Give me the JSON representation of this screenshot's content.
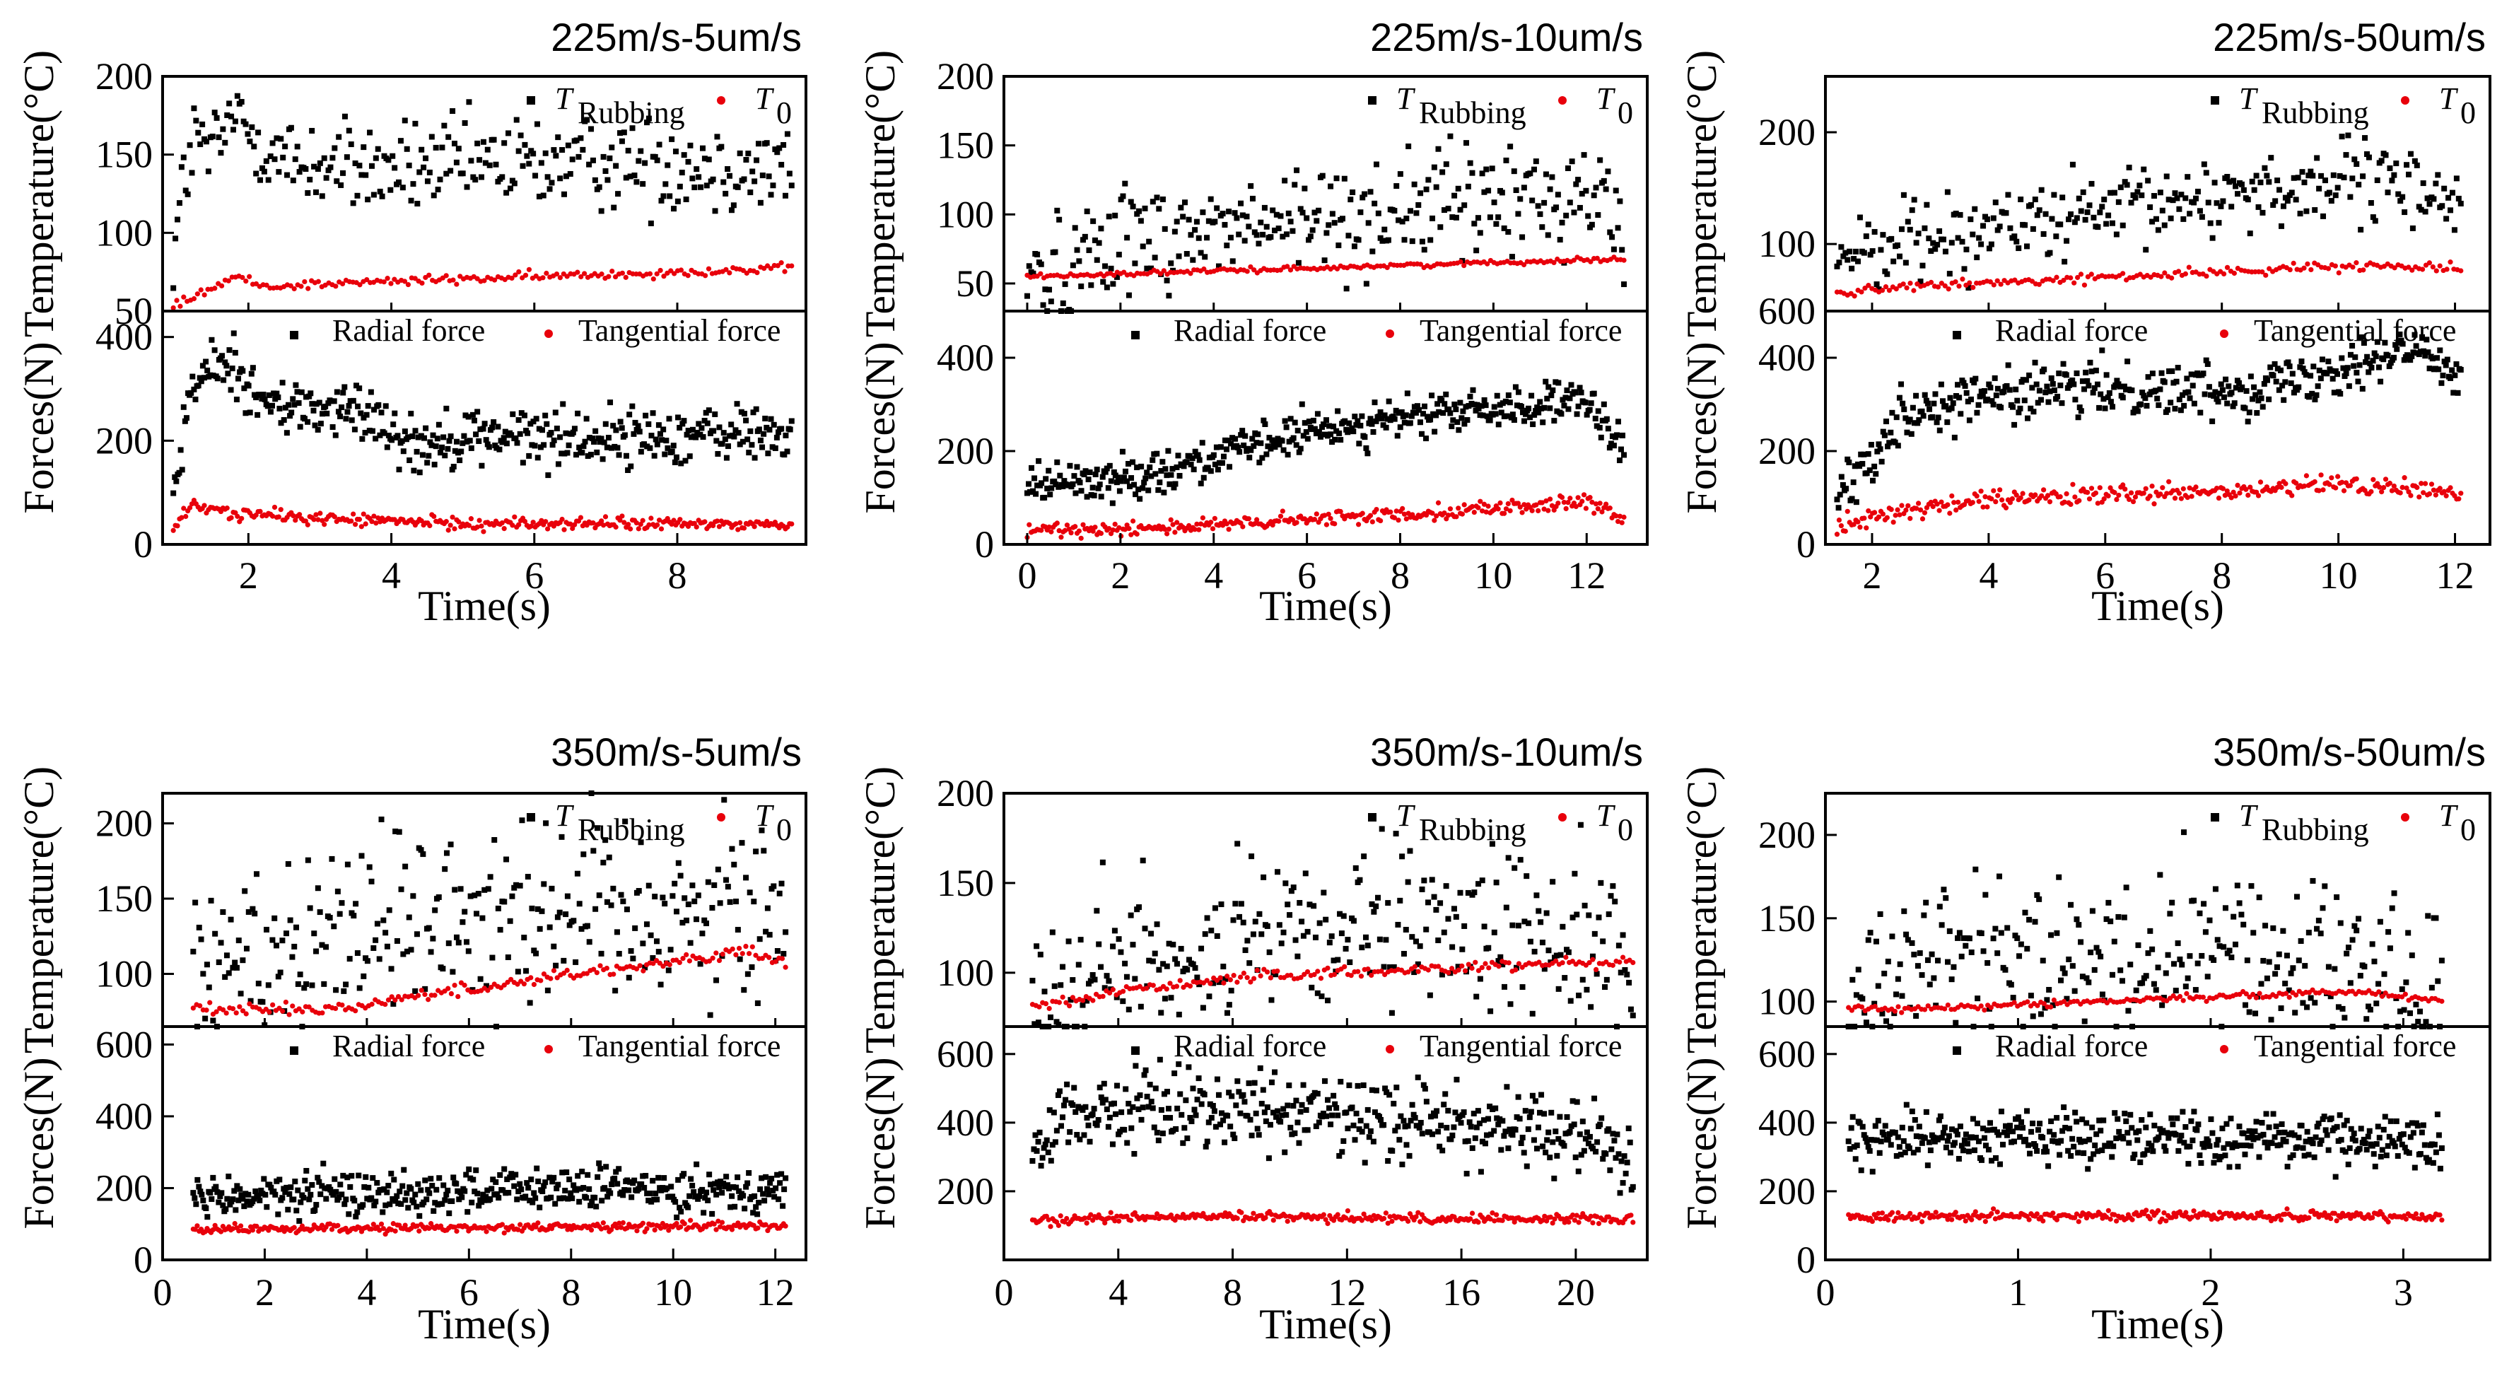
{
  "legend": {
    "t_rubbing": "T",
    "t_rubbing_sub": "Rubbing",
    "t0": "T",
    "t0_sub": "0",
    "radial": "Radial force",
    "tangential": "Tangential force"
  },
  "labels": {
    "temperature": "Temperature(°C)",
    "forces": "Forces(N)",
    "time": "Time(s)"
  },
  "colors": {
    "black_series": "#000000",
    "red_series": "#e8000b"
  },
  "chart_data": [
    {
      "type": "scatter",
      "title": "225m/s-5um/s",
      "xlim": [
        0.8,
        9.8
      ],
      "xticks": [
        2,
        4,
        6,
        8
      ],
      "temp": {
        "ylim": [
          50,
          200
        ],
        "yticks": [
          50,
          100,
          150,
          200
        ],
        "T_rubbing": [
          [
            0.95,
            85
          ],
          [
            1.1,
            135
          ],
          [
            1.25,
            160
          ],
          [
            1.5,
            150
          ],
          [
            1.8,
            175
          ],
          [
            2.5,
            145
          ],
          [
            4,
            140
          ],
          [
            6,
            145
          ],
          [
            8,
            145
          ],
          [
            9.6,
            140
          ]
        ],
        "T0": [
          [
            0.95,
            53
          ],
          [
            1.5,
            65
          ],
          [
            1.85,
            72
          ],
          [
            2.2,
            66
          ],
          [
            4,
            69
          ],
          [
            6,
            72
          ],
          [
            8,
            75
          ],
          [
            9.6,
            77
          ]
        ],
        "t_noise": 15,
        "t0_noise": 1.5
      },
      "force": {
        "ylim": [
          0,
          450
        ],
        "yticks": [
          0,
          200,
          400
        ],
        "radial": [
          [
            0.95,
            100
          ],
          [
            1.2,
            300
          ],
          [
            1.5,
            340
          ],
          [
            1.8,
            350
          ],
          [
            2.2,
            270
          ],
          [
            3,
            260
          ],
          [
            3.8,
            250
          ],
          [
            4.3,
            190
          ],
          [
            5,
            210
          ],
          [
            7,
            205
          ],
          [
            9,
            215
          ],
          [
            9.6,
            210
          ]
        ],
        "tangential": [
          [
            0.95,
            30
          ],
          [
            1.2,
            75
          ],
          [
            1.8,
            60
          ],
          [
            3,
            50
          ],
          [
            5,
            40
          ],
          [
            7,
            40
          ],
          [
            9.6,
            38
          ]
        ],
        "r_noise": 28,
        "t_noise": 6
      }
    },
    {
      "type": "scatter",
      "title": "225m/s-10um/s",
      "xlim": [
        -0.5,
        13.3
      ],
      "xticks": [
        0,
        2,
        4,
        6,
        8,
        10,
        12
      ],
      "temp": {
        "ylim": [
          30,
          200
        ],
        "yticks": [
          50,
          100,
          150,
          200
        ],
        "T_rubbing": [
          [
            0,
            56
          ],
          [
            0.9,
            57
          ],
          [
            1.5,
            85
          ],
          [
            3,
            85
          ],
          [
            6,
            95
          ],
          [
            8,
            105
          ],
          [
            10,
            110
          ],
          [
            12.5,
            115
          ],
          [
            12.8,
            68
          ]
        ],
        "T0": [
          [
            0,
            55
          ],
          [
            6,
            61
          ],
          [
            12.8,
            68
          ]
        ],
        "t_noise": 20,
        "t0_noise": 0.8
      },
      "force": {
        "ylim": [
          0,
          500
        ],
        "yticks": [
          0,
          200,
          400
        ],
        "radial": [
          [
            0,
            130
          ],
          [
            2,
            140
          ],
          [
            4,
            185
          ],
          [
            6,
            240
          ],
          [
            8,
            270
          ],
          [
            10,
            290
          ],
          [
            12,
            305
          ],
          [
            12.8,
            190
          ]
        ],
        "tangential": [
          [
            0,
            30
          ],
          [
            4,
            40
          ],
          [
            8,
            65
          ],
          [
            12,
            90
          ],
          [
            12.8,
            50
          ]
        ],
        "r_noise": 22,
        "t_noise": 8
      }
    },
    {
      "type": "scatter",
      "title": "225m/s-50um/s",
      "xlim": [
        1.2,
        12.6
      ],
      "xticks": [
        2,
        4,
        6,
        8,
        10,
        12
      ],
      "temp": {
        "ylim": [
          40,
          250
        ],
        "yticks": [
          100,
          200
        ],
        "T_rubbing": [
          [
            1.4,
            90
          ],
          [
            2,
            100
          ],
          [
            4,
            115
          ],
          [
            6,
            125
          ],
          [
            8,
            145
          ],
          [
            10,
            155
          ],
          [
            11.5,
            150
          ],
          [
            12.1,
            135
          ]
        ],
        "T0": [
          [
            1.4,
            55
          ],
          [
            2,
            60
          ],
          [
            4,
            65
          ],
          [
            6,
            70
          ],
          [
            8,
            75
          ],
          [
            10,
            80
          ],
          [
            12.1,
            80
          ]
        ],
        "t_noise": 18,
        "t0_noise": 2
      },
      "force": {
        "ylim": [
          0,
          500
        ],
        "yticks": [
          0,
          200,
          400
        ],
        "radial": [
          [
            1.4,
            100
          ],
          [
            1.9,
            180
          ],
          [
            2.5,
            280
          ],
          [
            4,
            320
          ],
          [
            6,
            335
          ],
          [
            8,
            330
          ],
          [
            9,
            345
          ],
          [
            10.5,
            400
          ],
          [
            11.5,
            410
          ],
          [
            12.1,
            370
          ]
        ],
        "tangential": [
          [
            1.4,
            40
          ],
          [
            2,
            60
          ],
          [
            4,
            95
          ],
          [
            6,
            105
          ],
          [
            8,
            110
          ],
          [
            10,
            130
          ],
          [
            12.1,
            110
          ]
        ],
        "r_noise": 28,
        "t_noise": 10
      },
      "extra_tick": "600"
    },
    {
      "type": "scatter",
      "title": "350m/s-5um/s",
      "xlim": [
        0,
        12.6
      ],
      "xticks": [
        0,
        2,
        4,
        6,
        8,
        10,
        12
      ],
      "temp": {
        "ylim": [
          65,
          220
        ],
        "yticks": [
          100,
          150,
          200
        ],
        "T_rubbing": [
          [
            0.6,
            85
          ],
          [
            1.5,
            115
          ],
          [
            3,
            130
          ],
          [
            5,
            140
          ],
          [
            7,
            145
          ],
          [
            9,
            145
          ],
          [
            11,
            145
          ],
          [
            12.2,
            140
          ]
        ],
        "T0": [
          [
            0.6,
            77
          ],
          [
            3.5,
            77
          ],
          [
            4.5,
            83
          ],
          [
            6,
            90
          ],
          [
            8,
            100
          ],
          [
            10,
            108
          ],
          [
            11.5,
            115
          ],
          [
            12.2,
            106
          ]
        ],
        "t_noise": 32,
        "t0_noise": 2
      },
      "force": {
        "ylim": [
          0,
          650
        ],
        "yticks": [
          0,
          200,
          400,
          600
        ],
        "radial": [
          [
            0.6,
            170
          ],
          [
            3,
            185
          ],
          [
            6,
            190
          ],
          [
            9,
            200
          ],
          [
            12.2,
            195
          ]
        ],
        "tangential": [
          [
            0.6,
            85
          ],
          [
            6,
            90
          ],
          [
            12.2,
            95
          ]
        ],
        "r_noise": 30,
        "t_noise": 6
      }
    },
    {
      "type": "scatter",
      "title": "350m/s-10um/s",
      "xlim": [
        0,
        22.5
      ],
      "xticks": [
        0,
        4,
        8,
        12,
        16,
        20
      ],
      "temp": {
        "ylim": [
          70,
          200
        ],
        "yticks": [
          100,
          150,
          200
        ],
        "T_rubbing": [
          [
            1,
            90
          ],
          [
            4,
            105
          ],
          [
            8,
            115
          ],
          [
            12,
            120
          ],
          [
            16,
            125
          ],
          [
            20,
            120
          ],
          [
            22,
            110
          ]
        ],
        "T0": [
          [
            1,
            80
          ],
          [
            4,
            90
          ],
          [
            8,
            97
          ],
          [
            12,
            100
          ],
          [
            16,
            103
          ],
          [
            20,
            106
          ],
          [
            22,
            106
          ]
        ],
        "t_noise": 22,
        "t0_noise": 1.5
      },
      "force": {
        "ylim": [
          0,
          680
        ],
        "yticks": [
          200,
          400,
          600
        ],
        "radial": [
          [
            1,
            320
          ],
          [
            2,
            420
          ],
          [
            6,
            450
          ],
          [
            10,
            430
          ],
          [
            14,
            410
          ],
          [
            18,
            380
          ],
          [
            21,
            350
          ],
          [
            22,
            250
          ]
        ],
        "tangential": [
          [
            1,
            110
          ],
          [
            4,
            125
          ],
          [
            10,
            125
          ],
          [
            16,
            120
          ],
          [
            22,
            120
          ]
        ],
        "r_noise": 55,
        "t_noise": 7
      }
    },
    {
      "type": "scatter",
      "title": "350m/s-50um/s",
      "xlim": [
        0,
        3.45
      ],
      "xticks": [
        0,
        1,
        2,
        3
      ],
      "temp": {
        "ylim": [
          85,
          225
        ],
        "yticks": [
          100,
          150,
          200
        ],
        "T_rubbing": [
          [
            0.12,
            105
          ],
          [
            0.5,
            125
          ],
          [
            1,
            125
          ],
          [
            1.5,
            125
          ],
          [
            2,
            130
          ],
          [
            2.5,
            130
          ],
          [
            2.8,
            120
          ],
          [
            3.2,
            105
          ]
        ],
        "T0": [
          [
            0.12,
            95
          ],
          [
            1,
            98
          ],
          [
            2,
            103
          ],
          [
            2.75,
            106
          ],
          [
            3.2,
            101
          ]
        ],
        "t_noise": 25,
        "t0_noise": 1
      },
      "force": {
        "ylim": [
          0,
          680
        ],
        "yticks": [
          0,
          200,
          400,
          600
        ],
        "radial": [
          [
            0.12,
            350
          ],
          [
            1,
            365
          ],
          [
            2,
            355
          ],
          [
            3,
            350
          ],
          [
            3.2,
            330
          ]
        ],
        "tangential": [
          [
            0.12,
            125
          ],
          [
            1.5,
            130
          ],
          [
            3.2,
            125
          ]
        ],
        "r_noise": 38,
        "t_noise": 7
      }
    }
  ]
}
